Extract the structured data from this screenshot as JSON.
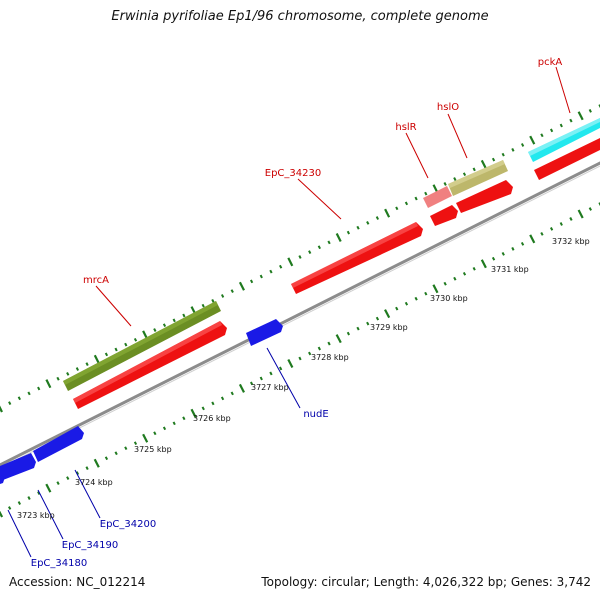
{
  "title": "Erwinia pyrifoliae Ep1/96 chromosome, complete genome",
  "footer": {
    "accession": "Accession: NC_012214",
    "summary": "Topology: circular; Length: 4,026,322 bp; Genes: 3,742"
  },
  "colors": {
    "backbone": "#8c8c8c",
    "ticks": "#1f7a1f",
    "forward_cds": "#ee1111",
    "reverse_cds": "#1a1ae6",
    "olive": "#6b8e23",
    "khaki": "#bdb76b",
    "pink": "#f08080",
    "cyan": "#22e8ee",
    "label_red": "#cc0000",
    "label_blue": "#0000aa"
  },
  "scale_labels": [
    "3723 kbp",
    "3724 kbp",
    "3725 kbp",
    "3726 kbp",
    "3727 kbp",
    "3728 kbp",
    "3729 kbp",
    "3730 kbp",
    "3731 kbp",
    "3732 kbp"
  ],
  "gene_labels": {
    "pckA": "pckA",
    "hslO": "hslO",
    "hslR": "hslR",
    "EpC_34230": "EpC_34230",
    "mrcA": "mrcA",
    "nudE": "nudE",
    "EpC_34200": "EpC_34200",
    "EpC_34190": "EpC_34190",
    "EpC_34180": "EpC_34180"
  }
}
